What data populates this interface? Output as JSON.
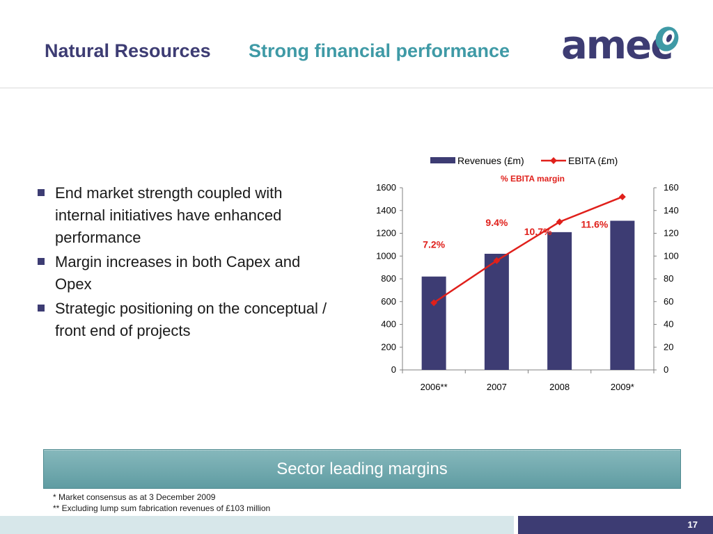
{
  "slide": {
    "title_main": "Natural Resources",
    "title_sub": "Strong financial performance",
    "logo_text": "amec",
    "bullets": [
      "End market strength coupled with internal initiatives have enhanced performance",
      "Margin increases in both Capex and Opex",
      "Strategic positioning on the conceptual / front end of projects"
    ],
    "banner": "Sector leading margins",
    "footnotes": [
      "*  Market consensus as at 3 December 2009",
      "** Excluding lump sum fabrication revenues of £103 million"
    ],
    "page_number": "17"
  },
  "colors": {
    "navy": "#3d3c73",
    "teal": "#3f9aa6",
    "bar": "#3d3c73",
    "line": "#e0201b",
    "margin_label": "#e0201b"
  },
  "chart_data": {
    "type": "bar",
    "categories": [
      "2006**",
      "2007",
      "2008",
      "2009*"
    ],
    "series": [
      {
        "name": "Revenues (£m)",
        "type": "bar",
        "axis": "left",
        "values": [
          820,
          1020,
          1210,
          1310
        ]
      },
      {
        "name": "EBITA (£m)",
        "type": "line",
        "axis": "right",
        "values": [
          59,
          96,
          130,
          152
        ]
      }
    ],
    "margin_title": "%  EBITA margin",
    "margin_labels": [
      "7.2%",
      "9.4%",
      "10.7%",
      "11.6%"
    ],
    "y_left": {
      "min": 0,
      "max": 1600,
      "ticks": [
        0,
        200,
        400,
        600,
        800,
        1000,
        1200,
        1400,
        1600
      ]
    },
    "y_right": {
      "min": 0,
      "max": 160,
      "ticks": [
        0,
        20,
        40,
        60,
        80,
        100,
        120,
        140,
        160
      ]
    },
    "legend_position": "top",
    "grid": false
  }
}
